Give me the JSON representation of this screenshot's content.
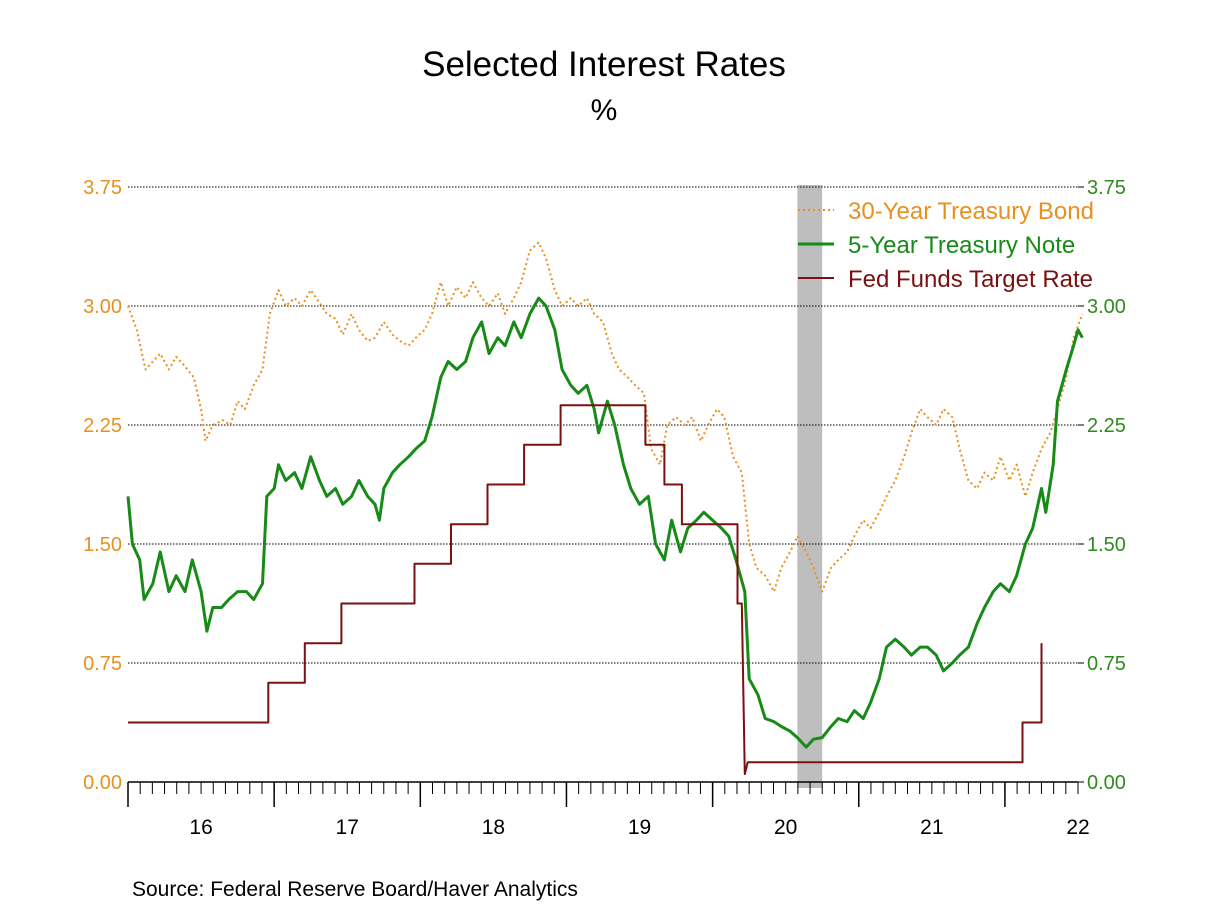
{
  "chart_data": {
    "type": "line",
    "title": "Selected Interest Rates",
    "subtitle": "%",
    "source": "Source:  Federal Reserve Board/Haver Analytics",
    "x_axis": {
      "range": [
        2015.5,
        2022.0
      ],
      "tick_labels": [
        "16",
        "17",
        "18",
        "19",
        "20",
        "21",
        "22"
      ],
      "minor_ticks": "monthly"
    },
    "y_axis_left": {
      "range": [
        0,
        3.75
      ],
      "ticks": [
        "0.00",
        "0.75",
        "1.50",
        "2.25",
        "3.00",
        "3.75"
      ],
      "color": "#E8901E"
    },
    "y_axis_right": {
      "range": [
        0,
        3.75
      ],
      "ticks": [
        "0.00",
        "0.75",
        "1.50",
        "2.25",
        "3.00",
        "3.75"
      ],
      "color": "#2E8B1E"
    },
    "grid": "horizontal dotted",
    "legend_position": "top-right",
    "recession_shading": {
      "start": 2020.08,
      "end": 2020.25,
      "color": "#BEBEBE"
    },
    "series": [
      {
        "name": "30-Year Treasury Bond",
        "style": "dotted",
        "color": "#E8901E",
        "points": [
          [
            2015.5,
            3.0
          ],
          [
            2015.56,
            2.85
          ],
          [
            2015.62,
            2.6
          ],
          [
            2015.67,
            2.65
          ],
          [
            2015.72,
            2.7
          ],
          [
            2015.78,
            2.6
          ],
          [
            2015.83,
            2.68
          ],
          [
            2015.89,
            2.62
          ],
          [
            2015.95,
            2.55
          ],
          [
            2016.0,
            2.35
          ],
          [
            2016.03,
            2.15
          ],
          [
            2016.08,
            2.25
          ],
          [
            2016.15,
            2.28
          ],
          [
            2016.2,
            2.25
          ],
          [
            2016.25,
            2.4
          ],
          [
            2016.3,
            2.35
          ],
          [
            2016.36,
            2.5
          ],
          [
            2016.42,
            2.6
          ],
          [
            2016.47,
            2.95
          ],
          [
            2016.53,
            3.1
          ],
          [
            2016.58,
            3.0
          ],
          [
            2016.64,
            3.05
          ],
          [
            2016.69,
            3.0
          ],
          [
            2016.75,
            3.1
          ],
          [
            2016.81,
            3.02
          ],
          [
            2016.86,
            2.95
          ],
          [
            2016.92,
            2.92
          ],
          [
            2016.97,
            2.82
          ],
          [
            2017.03,
            2.95
          ],
          [
            2017.08,
            2.85
          ],
          [
            2017.14,
            2.78
          ],
          [
            2017.19,
            2.8
          ],
          [
            2017.25,
            2.9
          ],
          [
            2017.31,
            2.82
          ],
          [
            2017.36,
            2.78
          ],
          [
            2017.42,
            2.75
          ],
          [
            2017.47,
            2.8
          ],
          [
            2017.53,
            2.85
          ],
          [
            2017.58,
            2.95
          ],
          [
            2017.64,
            3.15
          ],
          [
            2017.69,
            3.0
          ],
          [
            2017.75,
            3.12
          ],
          [
            2017.81,
            3.05
          ],
          [
            2017.86,
            3.15
          ],
          [
            2017.92,
            3.05
          ],
          [
            2017.97,
            3.0
          ],
          [
            2018.03,
            3.08
          ],
          [
            2018.08,
            2.95
          ],
          [
            2018.14,
            3.05
          ],
          [
            2018.19,
            3.15
          ],
          [
            2018.25,
            3.35
          ],
          [
            2018.31,
            3.4
          ],
          [
            2018.36,
            3.3
          ],
          [
            2018.42,
            3.1
          ],
          [
            2018.47,
            3.0
          ],
          [
            2018.53,
            3.05
          ],
          [
            2018.58,
            3.0
          ],
          [
            2018.64,
            3.05
          ],
          [
            2018.69,
            2.95
          ],
          [
            2018.75,
            2.9
          ],
          [
            2018.81,
            2.7
          ],
          [
            2018.86,
            2.6
          ],
          [
            2018.92,
            2.55
          ],
          [
            2018.97,
            2.5
          ],
          [
            2019.03,
            2.45
          ],
          [
            2019.08,
            2.1
          ],
          [
            2019.14,
            2.0
          ],
          [
            2019.19,
            2.25
          ],
          [
            2019.25,
            2.3
          ],
          [
            2019.31,
            2.25
          ],
          [
            2019.36,
            2.3
          ],
          [
            2019.42,
            2.15
          ],
          [
            2019.47,
            2.25
          ],
          [
            2019.53,
            2.35
          ],
          [
            2019.58,
            2.3
          ],
          [
            2019.64,
            2.05
          ],
          [
            2019.7,
            1.95
          ],
          [
            2019.75,
            1.5
          ],
          [
            2019.8,
            1.35
          ],
          [
            2019.86,
            1.3
          ],
          [
            2019.92,
            1.2
          ],
          [
            2019.97,
            1.35
          ],
          [
            2020.03,
            1.45
          ],
          [
            2020.08,
            1.55
          ],
          [
            2020.14,
            1.45
          ],
          [
            2020.19,
            1.35
          ],
          [
            2020.25,
            1.2
          ],
          [
            2020.31,
            1.35
          ],
          [
            2020.36,
            1.4
          ],
          [
            2020.42,
            1.45
          ],
          [
            2020.47,
            1.55
          ],
          [
            2020.53,
            1.65
          ],
          [
            2020.58,
            1.6
          ],
          [
            2020.64,
            1.7
          ],
          [
            2020.69,
            1.8
          ],
          [
            2020.75,
            1.9
          ],
          [
            2020.81,
            2.05
          ],
          [
            2020.86,
            2.2
          ],
          [
            2020.92,
            2.35
          ],
          [
            2020.97,
            2.3
          ],
          [
            2021.03,
            2.25
          ],
          [
            2021.08,
            2.35
          ],
          [
            2021.14,
            2.3
          ],
          [
            2021.19,
            2.1
          ],
          [
            2021.25,
            1.9
          ],
          [
            2021.31,
            1.85
          ],
          [
            2021.36,
            1.95
          ],
          [
            2021.42,
            1.9
          ],
          [
            2021.47,
            2.05
          ],
          [
            2021.53,
            1.9
          ],
          [
            2021.58,
            2.0
          ],
          [
            2021.64,
            1.8
          ],
          [
            2021.69,
            1.95
          ],
          [
            2021.75,
            2.1
          ],
          [
            2021.81,
            2.2
          ],
          [
            2021.86,
            2.35
          ],
          [
            2021.92,
            2.55
          ],
          [
            2021.97,
            2.8
          ],
          [
            2022.03,
            2.95
          ]
        ]
      },
      {
        "name": "5-Year Treasury Note",
        "style": "solid",
        "color": "#188A18",
        "points": [
          [
            2015.5,
            1.8
          ],
          [
            2015.53,
            1.5
          ],
          [
            2015.58,
            1.4
          ],
          [
            2015.61,
            1.15
          ],
          [
            2015.67,
            1.25
          ],
          [
            2015.72,
            1.45
          ],
          [
            2015.78,
            1.2
          ],
          [
            2015.83,
            1.3
          ],
          [
            2015.89,
            1.2
          ],
          [
            2015.94,
            1.4
          ],
          [
            2016.0,
            1.2
          ],
          [
            2016.04,
            0.95
          ],
          [
            2016.08,
            1.1
          ],
          [
            2016.14,
            1.1
          ],
          [
            2016.19,
            1.15
          ],
          [
            2016.25,
            1.2
          ],
          [
            2016.31,
            1.2
          ],
          [
            2016.36,
            1.15
          ],
          [
            2016.42,
            1.25
          ],
          [
            2016.45,
            1.8
          ],
          [
            2016.5,
            1.85
          ],
          [
            2016.53,
            2.0
          ],
          [
            2016.58,
            1.9
          ],
          [
            2016.64,
            1.95
          ],
          [
            2016.69,
            1.85
          ],
          [
            2016.75,
            2.05
          ],
          [
            2016.81,
            1.9
          ],
          [
            2016.86,
            1.8
          ],
          [
            2016.92,
            1.85
          ],
          [
            2016.97,
            1.75
          ],
          [
            2017.03,
            1.8
          ],
          [
            2017.08,
            1.9
          ],
          [
            2017.14,
            1.8
          ],
          [
            2017.19,
            1.75
          ],
          [
            2017.22,
            1.65
          ],
          [
            2017.25,
            1.85
          ],
          [
            2017.31,
            1.95
          ],
          [
            2017.36,
            2.0
          ],
          [
            2017.42,
            2.05
          ],
          [
            2017.47,
            2.1
          ],
          [
            2017.53,
            2.15
          ],
          [
            2017.58,
            2.3
          ],
          [
            2017.64,
            2.55
          ],
          [
            2017.69,
            2.65
          ],
          [
            2017.75,
            2.6
          ],
          [
            2017.81,
            2.65
          ],
          [
            2017.86,
            2.8
          ],
          [
            2017.92,
            2.9
          ],
          [
            2017.97,
            2.7
          ],
          [
            2018.03,
            2.8
          ],
          [
            2018.08,
            2.75
          ],
          [
            2018.14,
            2.9
          ],
          [
            2018.19,
            2.8
          ],
          [
            2018.25,
            2.95
          ],
          [
            2018.31,
            3.05
          ],
          [
            2018.36,
            3.0
          ],
          [
            2018.42,
            2.85
          ],
          [
            2018.47,
            2.6
          ],
          [
            2018.53,
            2.5
          ],
          [
            2018.58,
            2.45
          ],
          [
            2018.64,
            2.5
          ],
          [
            2018.69,
            2.35
          ],
          [
            2018.72,
            2.2
          ],
          [
            2018.78,
            2.4
          ],
          [
            2018.83,
            2.25
          ],
          [
            2018.89,
            2.0
          ],
          [
            2018.94,
            1.85
          ],
          [
            2019.0,
            1.75
          ],
          [
            2019.06,
            1.8
          ],
          [
            2019.11,
            1.5
          ],
          [
            2019.17,
            1.4
          ],
          [
            2019.22,
            1.65
          ],
          [
            2019.28,
            1.45
          ],
          [
            2019.33,
            1.6
          ],
          [
            2019.39,
            1.65
          ],
          [
            2019.44,
            1.7
          ],
          [
            2019.5,
            1.65
          ],
          [
            2019.56,
            1.6
          ],
          [
            2019.61,
            1.55
          ],
          [
            2019.66,
            1.4
          ],
          [
            2019.72,
            1.2
          ],
          [
            2019.75,
            0.65
          ],
          [
            2019.81,
            0.55
          ],
          [
            2019.86,
            0.4
          ],
          [
            2019.92,
            0.38
          ],
          [
            2019.97,
            0.35
          ],
          [
            2020.03,
            0.32
          ],
          [
            2020.08,
            0.28
          ],
          [
            2020.14,
            0.22
          ],
          [
            2020.19,
            0.27
          ],
          [
            2020.25,
            0.28
          ],
          [
            2020.31,
            0.35
          ],
          [
            2020.36,
            0.4
          ],
          [
            2020.42,
            0.38
          ],
          [
            2020.47,
            0.45
          ],
          [
            2020.53,
            0.4
          ],
          [
            2020.58,
            0.5
          ],
          [
            2020.64,
            0.65
          ],
          [
            2020.69,
            0.85
          ],
          [
            2020.75,
            0.9
          ],
          [
            2020.81,
            0.85
          ],
          [
            2020.86,
            0.8
          ],
          [
            2020.92,
            0.85
          ],
          [
            2020.97,
            0.85
          ],
          [
            2021.03,
            0.8
          ],
          [
            2021.08,
            0.7
          ],
          [
            2021.14,
            0.75
          ],
          [
            2021.19,
            0.8
          ],
          [
            2021.25,
            0.85
          ],
          [
            2021.31,
            1.0
          ],
          [
            2021.36,
            1.1
          ],
          [
            2021.42,
            1.2
          ],
          [
            2021.47,
            1.25
          ],
          [
            2021.53,
            1.2
          ],
          [
            2021.58,
            1.3
          ],
          [
            2021.64,
            1.5
          ],
          [
            2021.69,
            1.6
          ],
          [
            2021.75,
            1.85
          ],
          [
            2021.78,
            1.7
          ],
          [
            2021.83,
            2.0
          ],
          [
            2021.86,
            2.4
          ],
          [
            2021.92,
            2.6
          ],
          [
            2021.97,
            2.75
          ],
          [
            2022.0,
            2.85
          ],
          [
            2022.03,
            2.8
          ]
        ]
      },
      {
        "name": "Fed Funds Target Rate",
        "style": "solid",
        "color": "#7A1010",
        "points": [
          [
            2015.5,
            0.375
          ],
          [
            2016.46,
            0.375
          ],
          [
            2016.46,
            0.625
          ],
          [
            2016.71,
            0.625
          ],
          [
            2016.71,
            0.875
          ],
          [
            2016.96,
            0.875
          ],
          [
            2016.96,
            1.125
          ],
          [
            2017.46,
            1.125
          ],
          [
            2017.46,
            1.375
          ],
          [
            2017.71,
            1.375
          ],
          [
            2017.71,
            1.625
          ],
          [
            2017.96,
            1.625
          ],
          [
            2017.96,
            1.875
          ],
          [
            2018.21,
            1.875
          ],
          [
            2018.21,
            2.125
          ],
          [
            2018.46,
            2.125
          ],
          [
            2018.46,
            2.375
          ],
          [
            2019.04,
            2.375
          ],
          [
            2019.04,
            2.125
          ],
          [
            2019.17,
            2.125
          ],
          [
            2019.17,
            1.875
          ],
          [
            2019.29,
            1.875
          ],
          [
            2019.29,
            1.625
          ],
          [
            2019.67,
            1.625
          ],
          [
            2019.67,
            1.125
          ],
          [
            2019.7,
            1.125
          ],
          [
            2019.72,
            0.05
          ],
          [
            2019.74,
            0.125
          ],
          [
            2021.62,
            0.125
          ],
          [
            2021.62,
            0.375
          ],
          [
            2021.75,
            0.375
          ],
          [
            2021.75,
            0.875
          ]
        ]
      }
    ]
  },
  "legend": {
    "items": [
      {
        "label": "30-Year Treasury Bond",
        "color": "#E8901E",
        "style": "dotted"
      },
      {
        "label": "5-Year Treasury Note",
        "color": "#188A18",
        "style": "solid"
      },
      {
        "label": "Fed Funds Target Rate",
        "color": "#7A1010",
        "style": "solid"
      }
    ]
  }
}
